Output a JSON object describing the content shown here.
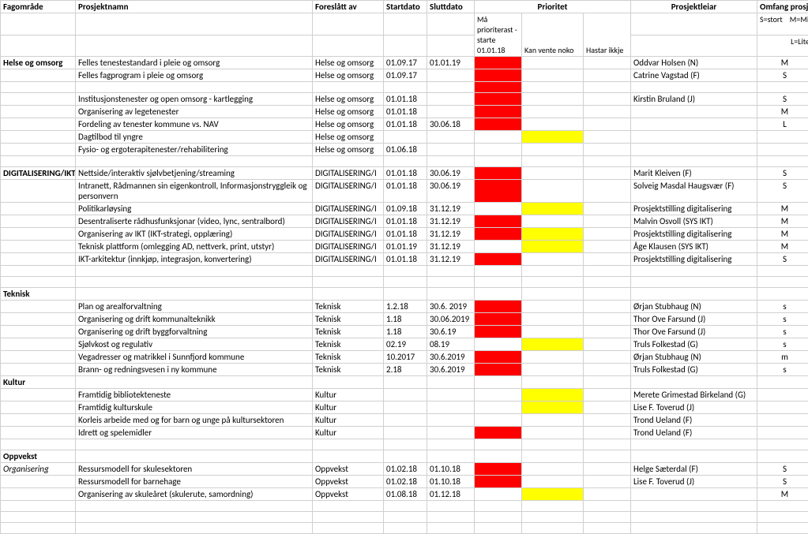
{
  "headers": {
    "a": "Fagområde",
    "b": "Prosjektnamn",
    "c": "Foreslått av",
    "d": "Startdato",
    "e": "Sluttdato",
    "fgh": "Prioritet",
    "i": "Prosjektleiar",
    "j": "Omfang prosjek"
  },
  "subheaders": {
    "f": "Må prioriterast - starte 01.01.18",
    "g": "Kan vente noko",
    "h": "Hastar ikkje",
    "j1": "S=stort",
    "j2": "M=Midd",
    "j3": "L=Lite"
  },
  "sections": {
    "helse": "Helse og omsorg",
    "ikt": "DIGITALISERING/IKT",
    "teknisk": "Teknisk",
    "kultur": "Kultur",
    "oppvekst": "Oppvekst",
    "organisering": "Organisering"
  },
  "rows": [
    {
      "a": "Helse og omsorg",
      "b": "Felles tenestestandard i pleie og omsorg",
      "c": "Helse og omsorg",
      "d": "01.09.17",
      "e": "01.01.19",
      "f": "red",
      "g": "",
      "h": "",
      "i": "Oddvar Holsen (N)",
      "j": "M"
    },
    {
      "a": "",
      "b": "Felles fagprogram i pleie og omsorg",
      "c": "Helse og omsorg",
      "d": "01.09.17",
      "e": "",
      "f": "red",
      "g": "",
      "h": "",
      "i": "Catrine Vagstad (F)",
      "j": "S"
    },
    {
      "a": "",
      "b": "",
      "c": "",
      "d": "",
      "e": "",
      "f": "red",
      "g": "",
      "h": "",
      "i": "",
      "j": ""
    },
    {
      "a": "",
      "b": "Institusjonstenester og open omsorg - kartlegging",
      "c": "Helse og omsorg",
      "d": "01.01.18",
      "e": "",
      "f": "red",
      "g": "",
      "h": "",
      "i": "Kirstin Bruland (J)",
      "j": "S"
    },
    {
      "a": "",
      "b": "Organisering av legetenester",
      "c": "Helse og omsorg",
      "d": "01.01.18",
      "e": "",
      "f": "red",
      "g": "",
      "h": "",
      "i": "",
      "j": "M"
    },
    {
      "a": "",
      "b": "Fordeling av tenester kommune vs. NAV",
      "c": "Helse og omsorg",
      "d": "01.01.18",
      "e": "30.06.18",
      "f": "red",
      "g": "",
      "h": "",
      "i": "",
      "j": "L"
    },
    {
      "a": "",
      "b": "Dagtilbod til yngre",
      "c": "Helse og omsorg",
      "d": "",
      "e": "",
      "f": "",
      "g": "yellow",
      "h": "",
      "i": "",
      "j": ""
    },
    {
      "a": "",
      "b": "Fysio- og ergoterapitenester/rehabilitering",
      "c": "Helse og omsorg",
      "d": "01.06.18",
      "e": "",
      "f": "",
      "g": "",
      "h": "",
      "i": "",
      "j": ""
    },
    {
      "a": "",
      "b": "",
      "c": "",
      "d": "",
      "e": "",
      "f": "",
      "g": "",
      "h": "",
      "i": "",
      "j": ""
    },
    {
      "a": "DIGITALISERING/IKT",
      "b": "Nettside/interaktiv sjølvbetjening/streaming",
      "c": "DIGITALISERING/I",
      "d": "01.01.18",
      "e": "30.06.19",
      "f": "red",
      "g": "",
      "h": "",
      "i": "Marit Kleiven (F)",
      "j": "S"
    },
    {
      "a": "",
      "b": "Intranett, Rådmannen sin eigenkontroll, Informasjonstryggleik og personvern",
      "c": "DIGITALISERING/I",
      "d": "01.01.18",
      "e": "30.06.19",
      "f": "red",
      "g": "",
      "h": "",
      "i": "Solveig Masdal Haugsvær (F)",
      "j": "S",
      "wrap": true
    },
    {
      "a": "",
      "b": "Politikarløysing",
      "c": "DIGITALISERING/I",
      "d": "01.09.18",
      "e": "31.12.19",
      "f": "",
      "g": "yellow",
      "h": "",
      "i": "Prosjektstilling digitalisering",
      "j": "M"
    },
    {
      "a": "",
      "b": "Desentraliserte rådhusfunksjonar (video, lync, sentralbord)",
      "c": "DIGITALISERING/I",
      "d": "01.01.18",
      "e": "31.12.19",
      "f": "red",
      "g": "",
      "h": "",
      "i": "Malvin Osvoll (SYS IKT)",
      "j": "M"
    },
    {
      "a": "",
      "b": "Organisering av IKT (IKT-strategi, opplæring)",
      "c": "DIGITALISERING/I",
      "d": "01.01.18",
      "e": "31.12.19",
      "f": "red",
      "g": "yellow",
      "h": "",
      "i": "Prosjektstilling digitalisering",
      "j": "M"
    },
    {
      "a": "",
      "b": "Teknisk plattform (omlegging AD, nettverk, print, utstyr)",
      "c": "DIGITALISERING/I",
      "d": "01.01.19",
      "e": "31.12.19",
      "f": "",
      "g": "yellow",
      "h": "",
      "i": "Åge Klausen (SYS IKT)",
      "j": "M"
    },
    {
      "a": "",
      "b": "IKT-arkitektur (innkjøp, integrasjon, konvertering)",
      "c": "DIGITALISERING/I",
      "d": "01.01.18",
      "e": "31.12.19",
      "f": "red",
      "g": "",
      "h": "",
      "i": "Prosjektstilling digitalisering",
      "j": "S"
    },
    {
      "a": "",
      "b": "",
      "c": "",
      "d": "",
      "e": "",
      "f": "",
      "g": "",
      "h": "",
      "i": "",
      "j": ""
    },
    {
      "a": "",
      "b": "",
      "c": "",
      "d": "",
      "e": "",
      "f": "",
      "g": "",
      "h": "",
      "i": "",
      "j": ""
    },
    {
      "a": "Teknisk",
      "b": "",
      "c": "",
      "d": "",
      "e": "",
      "f": "",
      "g": "",
      "h": "",
      "i": "",
      "j": ""
    },
    {
      "a": "",
      "b": "Plan og arealforvaltning",
      "c": "Teknisk",
      "d": "1.2.18",
      "e": "30.6. 2019",
      "f": "red",
      "g": "",
      "h": "",
      "i": "Ørjan Stubhaug (N)",
      "j": "s"
    },
    {
      "a": "",
      "b": "Organisering og drift kommunalteknikk",
      "c": "Teknisk",
      "d": "1.18",
      "e": "30.06.2019",
      "f": "red",
      "g": "",
      "h": "",
      "i": "Thor Ove Farsund (J)",
      "j": "s"
    },
    {
      "a": "",
      "b": "Organisering og drift byggforvaltning",
      "c": "Teknisk",
      "d": "1.18",
      "e": "30.6.19",
      "f": "red",
      "g": "",
      "h": "",
      "i": "Thor Ove Farsund (J)",
      "j": "s"
    },
    {
      "a": "",
      "b": "Sjølvkost og regulativ",
      "c": "Teknisk",
      "d": "02.19",
      "e": "08.19",
      "f": "",
      "g": "yellow",
      "h": "",
      "i": "Truls Folkestad (G)",
      "j": "s"
    },
    {
      "a": "",
      "b": "Vegadresser og matrikkel i Sunnfjord kommune",
      "c": "Teknisk",
      "d": "10.2017",
      "e": "30.6.2019",
      "f": "red",
      "g": "",
      "h": "",
      "i": "Ørjan Stubhaug (N)",
      "j": "m"
    },
    {
      "a": "",
      "b": "Brann- og redningsvesen i ny kommune",
      "c": "Teknisk",
      "d": "2.18",
      "e": "30.6.2019",
      "f": "red",
      "g": "",
      "h": "",
      "i": "Truls Folkestad (G)",
      "j": "s"
    },
    {
      "a": "Kultur",
      "b": "",
      "c": "",
      "d": "",
      "e": "",
      "f": "",
      "g": "",
      "h": "",
      "i": "",
      "j": ""
    },
    {
      "a": "",
      "b": "Framtidig bibliotekteneste",
      "c": "Kultur",
      "d": "",
      "e": "",
      "f": "",
      "g": "yellow",
      "h": "",
      "i": "Merete Grimestad Birkeland (G)",
      "j": ""
    },
    {
      "a": "",
      "b": "Framtidig kulturskule",
      "c": "Kultur",
      "d": "",
      "e": "",
      "f": "",
      "g": "yellow",
      "h": "",
      "i": "Lise F. Toverud (J)",
      "j": ""
    },
    {
      "a": "",
      "b": "Korleis arbeide med og for barn og unge på kultursektoren",
      "c": "Kultur",
      "d": "",
      "e": "",
      "f": "",
      "g": "",
      "h": "",
      "i": "Trond Ueland (F)",
      "j": ""
    },
    {
      "a": "",
      "b": "Idrett og spelemidler",
      "c": "Kultur",
      "d": "",
      "e": "",
      "f": "red",
      "g": "",
      "h": "",
      "i": "Trond Ueland (F)",
      "j": ""
    },
    {
      "a": "",
      "b": "",
      "c": "",
      "d": "",
      "e": "",
      "f": "",
      "g": "",
      "h": "",
      "i": "",
      "j": ""
    },
    {
      "a": "Oppvekst",
      "b": "",
      "c": "",
      "d": "",
      "e": "",
      "f": "",
      "g": "",
      "h": "",
      "i": "",
      "j": ""
    },
    {
      "a": "Organisering",
      "aItalic": true,
      "b": "Ressursmodell for skulesektoren",
      "c": "Oppvekst",
      "d": "01.02.18",
      "e": "01.10.18",
      "f": "red",
      "g": "",
      "h": "",
      "i": "Helge Sæterdal (F)",
      "j": "S"
    },
    {
      "a": "",
      "b": "Ressursmodell for barnehage",
      "c": "Oppvekst",
      "d": "01.02.18",
      "e": "01.10.18",
      "f": "red",
      "g": "",
      "h": "",
      "i": "Lise F. Toverud (J)",
      "j": "S"
    },
    {
      "a": "",
      "b": "Organisering av skuleåret (skulerute, samordning)",
      "c": "Oppvekst",
      "d": "01.08.18",
      "e": "01.12.18",
      "f": "",
      "g": "yellow",
      "h": "",
      "i": "",
      "j": "M"
    },
    {
      "a": "",
      "b": "",
      "c": "",
      "d": "",
      "e": "",
      "f": "",
      "g": "",
      "h": "",
      "i": "",
      "j": ""
    },
    {
      "a": "",
      "b": "",
      "c": "",
      "d": "",
      "e": "",
      "f": "",
      "g": "",
      "h": "",
      "i": "",
      "j": ""
    },
    {
      "a": "",
      "b": "",
      "c": "",
      "d": "",
      "e": "",
      "f": "",
      "g": "",
      "h": "",
      "i": "",
      "j": ""
    }
  ],
  "colors": {
    "red": "#ff0000",
    "yellow": "#ffff00",
    "border": "#d0d0d0",
    "bg": "#ffffff"
  }
}
